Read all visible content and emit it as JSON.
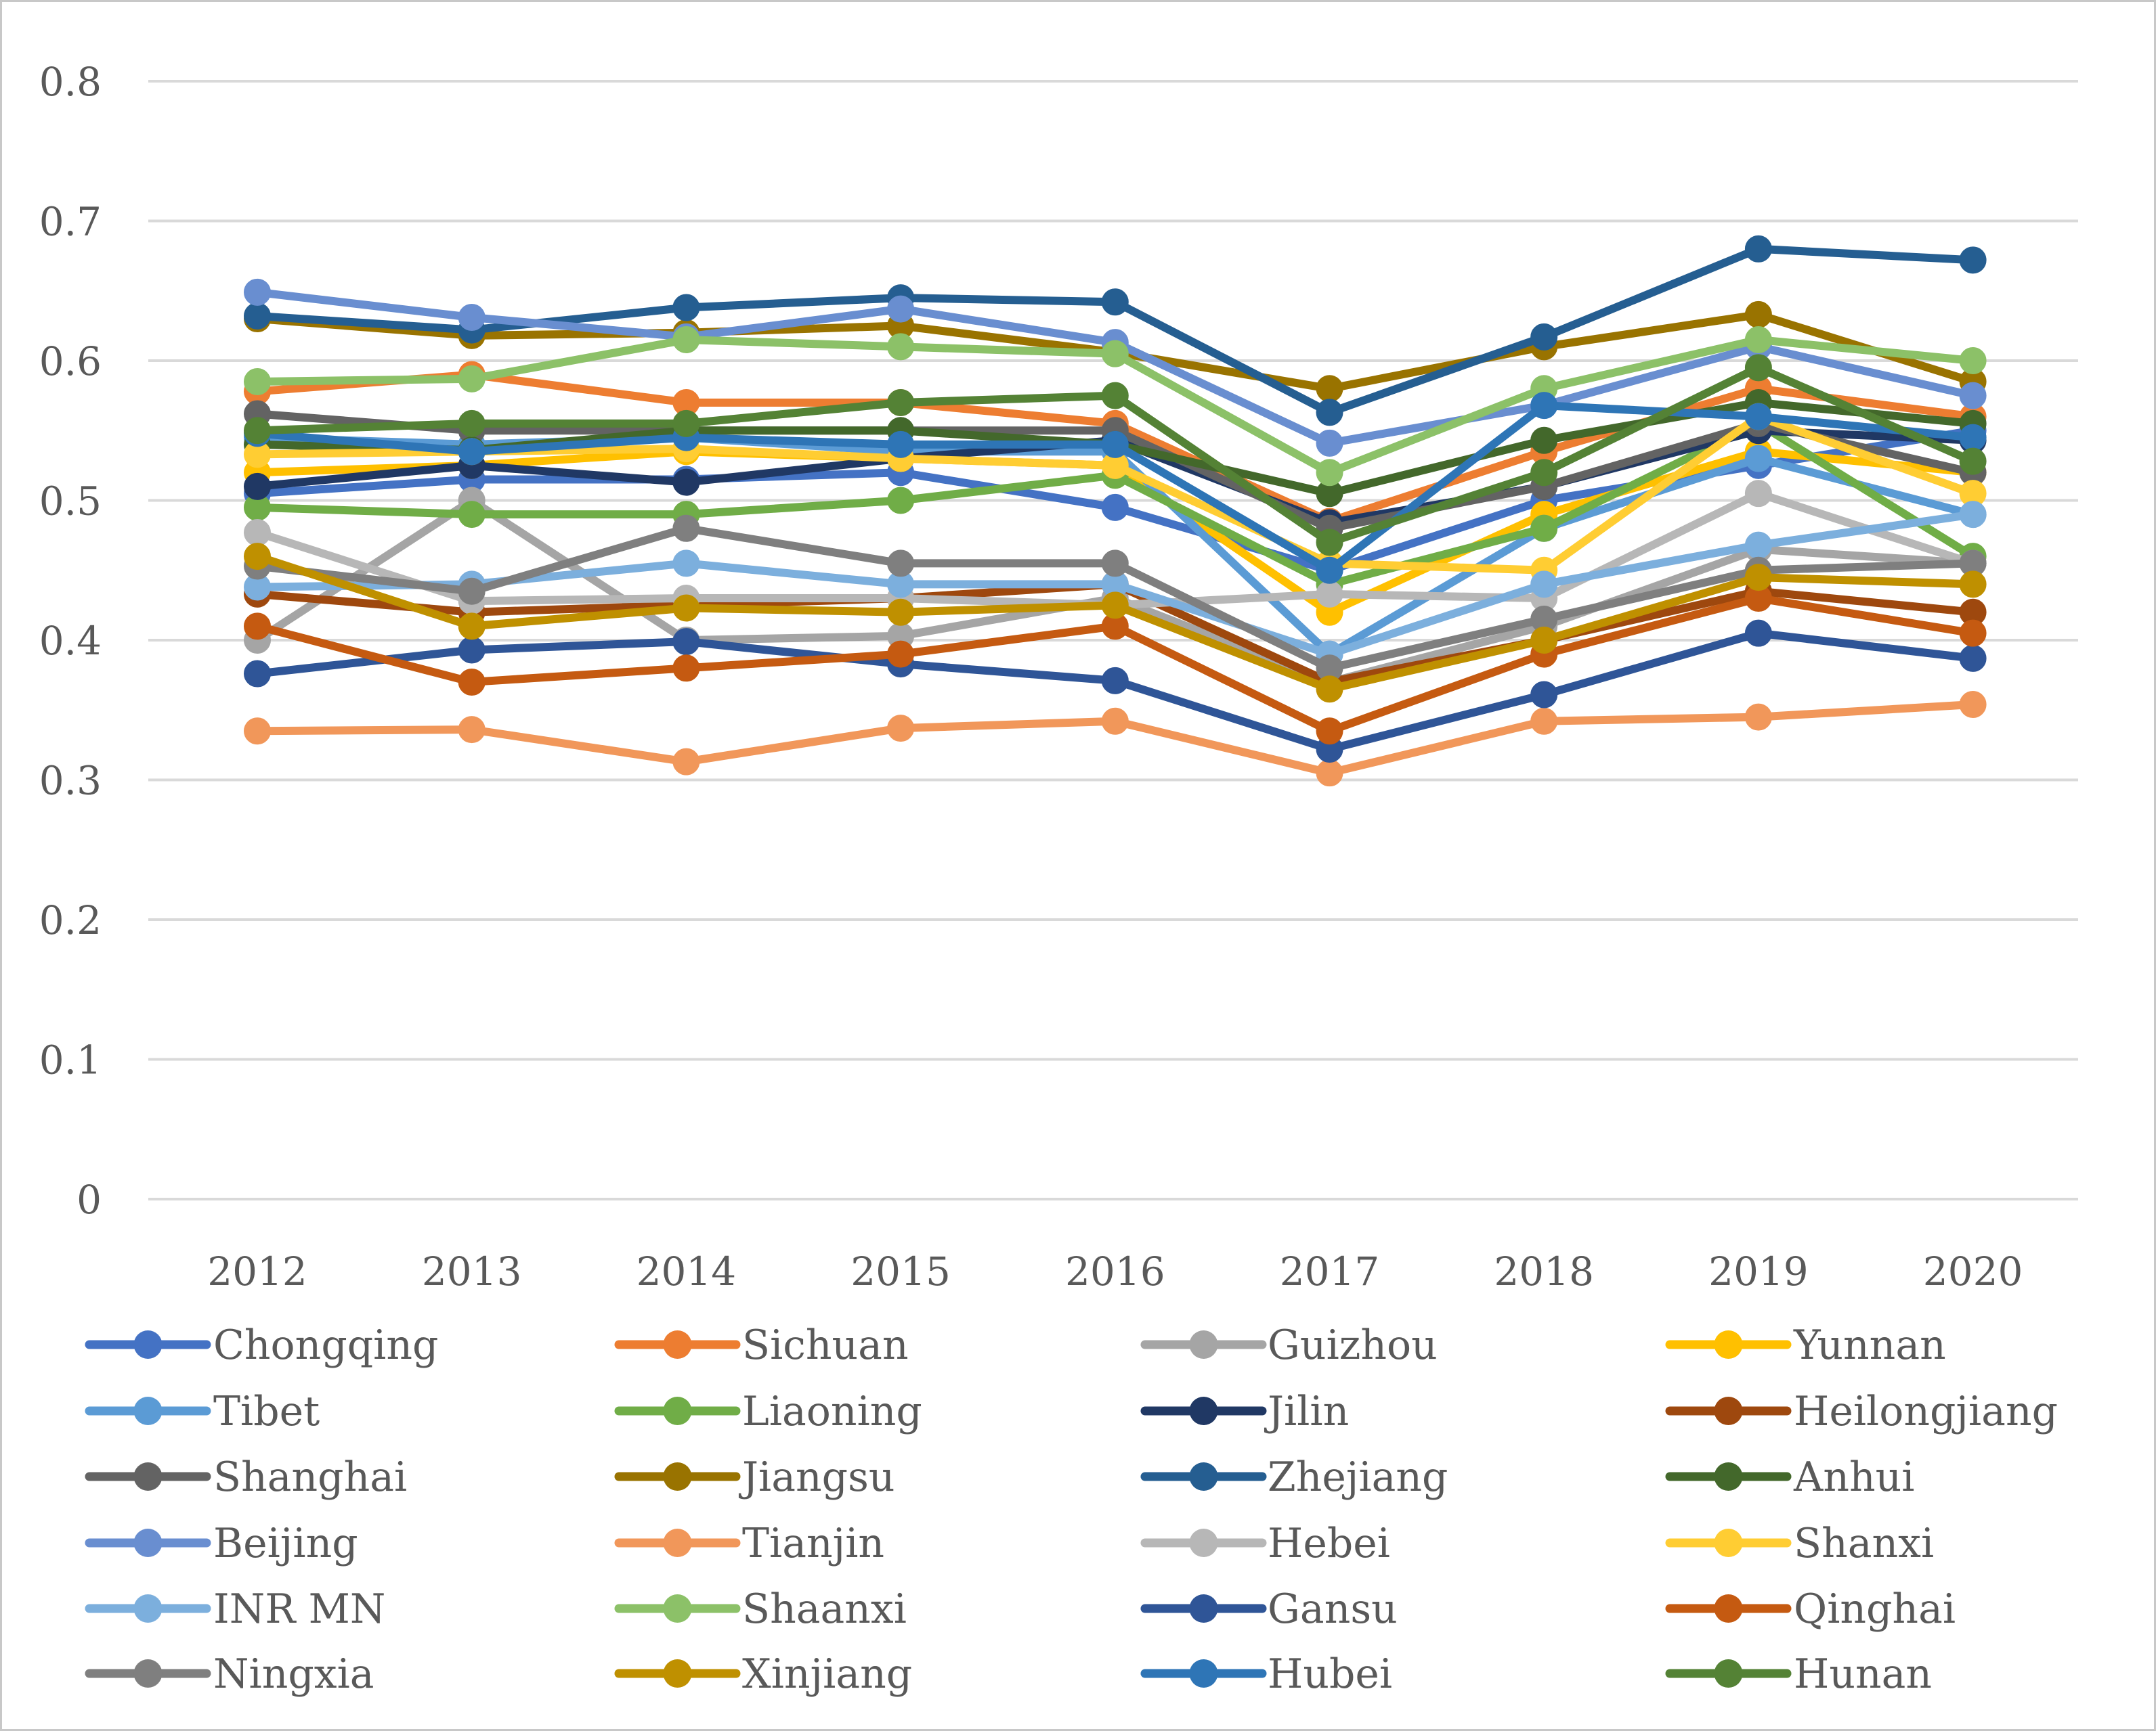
{
  "chart_data": {
    "type": "line",
    "title": "",
    "xlabel": "",
    "ylabel": "",
    "ylim": [
      0,
      0.8
    ],
    "yticks": [
      "0",
      "0.1",
      "0.2",
      "0.3",
      "0.4",
      "0.5",
      "0.6",
      "0.7",
      "0.8"
    ],
    "categories": [
      "2012",
      "2013",
      "2014",
      "2015",
      "2016",
      "2017",
      "2018",
      "2019",
      "2020"
    ],
    "grid": true,
    "legend_position": "bottom",
    "series": [
      {
        "name": "Chongqing",
        "color": "#4472C4",
        "values": [
          0.505,
          0.515,
          0.515,
          0.52,
          0.495,
          0.45,
          0.5,
          0.525,
          0.55
        ]
      },
      {
        "name": "Sichuan",
        "color": "#ED7D31",
        "values": [
          0.578,
          0.59,
          0.57,
          0.57,
          0.555,
          0.485,
          0.535,
          0.58,
          0.56
        ]
      },
      {
        "name": "Guizhou",
        "color": "#A5A5A5",
        "values": [
          0.4,
          0.5,
          0.4,
          0.403,
          0.43,
          0.37,
          0.41,
          0.465,
          0.455
        ]
      },
      {
        "name": "Yunnan",
        "color": "#FFC000",
        "values": [
          0.52,
          0.525,
          0.535,
          0.53,
          0.525,
          0.42,
          0.49,
          0.535,
          0.52
        ]
      },
      {
        "name": "Tibet",
        "color": "#5B9BD5",
        "values": [
          0.545,
          0.54,
          0.545,
          0.535,
          0.535,
          0.39,
          0.48,
          0.53,
          0.49
        ]
      },
      {
        "name": "Liaoning",
        "color": "#70AD47",
        "values": [
          0.495,
          0.49,
          0.49,
          0.5,
          0.518,
          0.44,
          0.48,
          0.555,
          0.46
        ]
      },
      {
        "name": "Jilin",
        "color": "#203864",
        "values": [
          0.51,
          0.525,
          0.513,
          0.53,
          0.543,
          0.484,
          0.51,
          0.55,
          0.543
        ]
      },
      {
        "name": "Heilongjiang",
        "color": "#9E480E",
        "values": [
          0.433,
          0.42,
          0.425,
          0.43,
          0.44,
          0.37,
          0.4,
          0.435,
          0.42
        ]
      },
      {
        "name": "Shanghai",
        "color": "#636363",
        "values": [
          0.562,
          0.55,
          0.55,
          0.55,
          0.55,
          0.48,
          0.51,
          0.555,
          0.52
        ]
      },
      {
        "name": "Jiangsu",
        "color": "#997300",
        "values": [
          0.63,
          0.618,
          0.62,
          0.625,
          0.606,
          0.58,
          0.61,
          0.633,
          0.585
        ]
      },
      {
        "name": "Zhejiang",
        "color": "#255E91",
        "values": [
          0.632,
          0.622,
          0.638,
          0.645,
          0.642,
          0.563,
          0.617,
          0.68,
          0.672
        ]
      },
      {
        "name": "Anhui",
        "color": "#43682B",
        "values": [
          0.54,
          0.536,
          0.55,
          0.55,
          0.54,
          0.505,
          0.543,
          0.57,
          0.555
        ]
      },
      {
        "name": "Beijing",
        "color": "#698ED0",
        "values": [
          0.649,
          0.631,
          0.617,
          0.637,
          0.613,
          0.541,
          0.568,
          0.61,
          0.575
        ]
      },
      {
        "name": "Tianjin",
        "color": "#F1975A",
        "values": [
          0.335,
          0.336,
          0.313,
          0.337,
          0.342,
          0.305,
          0.342,
          0.345,
          0.354
        ]
      },
      {
        "name": "Hebei",
        "color": "#B7B7B7",
        "values": [
          0.477,
          0.428,
          0.43,
          0.43,
          0.425,
          0.433,
          0.43,
          0.505,
          0.455
        ]
      },
      {
        "name": "Shanxi",
        "color": "#FFCD33",
        "values": [
          0.533,
          0.535,
          0.537,
          0.53,
          0.525,
          0.455,
          0.45,
          0.56,
          0.505
        ]
      },
      {
        "name": "INR MN",
        "color": "#7CAFDD",
        "values": [
          0.438,
          0.44,
          0.455,
          0.44,
          0.44,
          0.39,
          0.44,
          0.468,
          0.49
        ]
      },
      {
        "name": "Shaanxi",
        "color": "#8CC168",
        "values": [
          0.585,
          0.587,
          0.615,
          0.61,
          0.605,
          0.52,
          0.58,
          0.615,
          0.6
        ]
      },
      {
        "name": "Gansu",
        "color": "#2F5597",
        "values": [
          0.376,
          0.393,
          0.399,
          0.383,
          0.371,
          0.322,
          0.361,
          0.405,
          0.387
        ]
      },
      {
        "name": "Qinghai",
        "color": "#C55A11",
        "values": [
          0.41,
          0.37,
          0.38,
          0.39,
          0.41,
          0.335,
          0.39,
          0.43,
          0.405
        ]
      },
      {
        "name": "Ningxia",
        "color": "#7F7F7F",
        "values": [
          0.453,
          0.435,
          0.48,
          0.455,
          0.455,
          0.38,
          0.415,
          0.45,
          0.455
        ]
      },
      {
        "name": "Xinjiang",
        "color": "#BF9000",
        "values": [
          0.46,
          0.41,
          0.423,
          0.42,
          0.425,
          0.365,
          0.4,
          0.445,
          0.44
        ]
      },
      {
        "name": "Hubei",
        "color": "#2E75B6",
        "values": [
          0.548,
          0.535,
          0.545,
          0.54,
          0.54,
          0.45,
          0.568,
          0.56,
          0.545
        ]
      },
      {
        "name": "Hunan",
        "color": "#548235",
        "values": [
          0.55,
          0.555,
          0.555,
          0.57,
          0.575,
          0.47,
          0.52,
          0.595,
          0.528
        ]
      }
    ]
  }
}
